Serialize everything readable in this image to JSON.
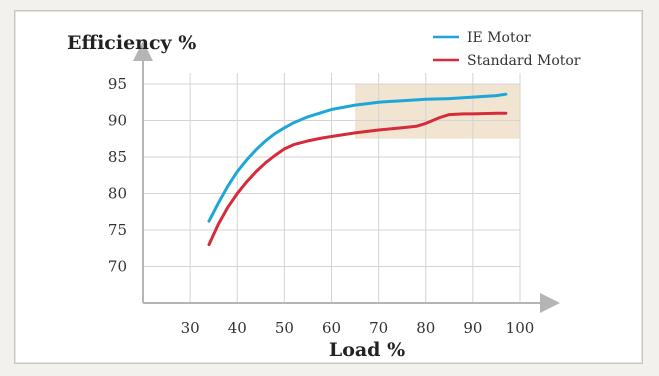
{
  "chart_data": {
    "type": "line",
    "title": "Efficiency %",
    "xlabel": "Load %",
    "ylabel": "Efficiency %",
    "xlim": [
      20,
      100
    ],
    "ylim": [
      65,
      96.5
    ],
    "xticks": [
      30,
      40,
      50,
      60,
      70,
      80,
      90,
      100
    ],
    "yticks": [
      70,
      75,
      80,
      85,
      90,
      95
    ],
    "grid": true,
    "legend": "top-right",
    "highlight_region": {
      "x": [
        65,
        100
      ],
      "y": [
        87.5,
        95
      ]
    },
    "series": [
      {
        "name": "IE Motor",
        "color": "#1ea6d8",
        "x": [
          34,
          36,
          38,
          40,
          42,
          44,
          46,
          48,
          50,
          52,
          55,
          58,
          60,
          65,
          70,
          75,
          80,
          85,
          90,
          95,
          97
        ],
        "y": [
          76.2,
          78.7,
          81.0,
          83.0,
          84.6,
          86.0,
          87.2,
          88.2,
          89.0,
          89.7,
          90.5,
          91.1,
          91.5,
          92.1,
          92.5,
          92.7,
          92.9,
          93.0,
          93.2,
          93.4,
          93.6
        ]
      },
      {
        "name": "Standard Motor",
        "color": "#d62b3b",
        "x": [
          34,
          36,
          38,
          40,
          42,
          44,
          46,
          48,
          50,
          52,
          55,
          58,
          60,
          65,
          70,
          75,
          78,
          80,
          83,
          85,
          88,
          90,
          95,
          97
        ],
        "y": [
          73.0,
          75.8,
          78.1,
          80.0,
          81.6,
          83.0,
          84.2,
          85.2,
          86.1,
          86.7,
          87.2,
          87.6,
          87.8,
          88.3,
          88.7,
          89.0,
          89.2,
          89.6,
          90.4,
          90.8,
          90.9,
          90.9,
          91.0,
          91.0
        ]
      }
    ]
  }
}
